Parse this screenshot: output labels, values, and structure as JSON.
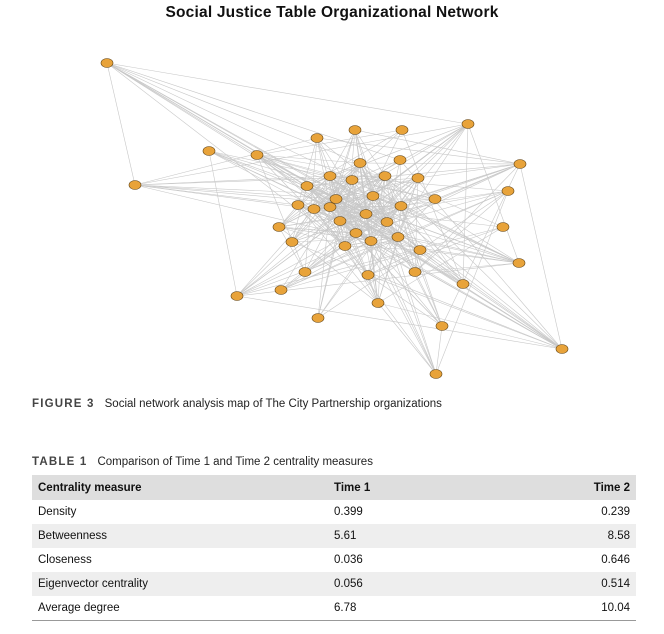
{
  "network": {
    "title": "Social Justice Table Organizational Network",
    "node_color": "#e8a33a",
    "edge_color": "#c8c8c8"
  },
  "figure_caption": {
    "label": "FIGURE 3",
    "text": "Social network analysis map of The City Partnership organizations"
  },
  "table_caption": {
    "label": "TABLE 1",
    "text": "Comparison of Time 1 and Time 2 centrality measures"
  },
  "table": {
    "headers": [
      "Centrality measure",
      "Time 1",
      "Time 2"
    ],
    "rows": [
      [
        "Density",
        "0.399",
        "0.239"
      ],
      [
        "Betweenness",
        "5.61",
        "8.58"
      ],
      [
        "Closeness",
        "0.036",
        "0.646"
      ],
      [
        "Eigenvector centrality",
        "0.056",
        "0.514"
      ],
      [
        "Average degree",
        "6.78",
        "10.04"
      ]
    ]
  }
}
